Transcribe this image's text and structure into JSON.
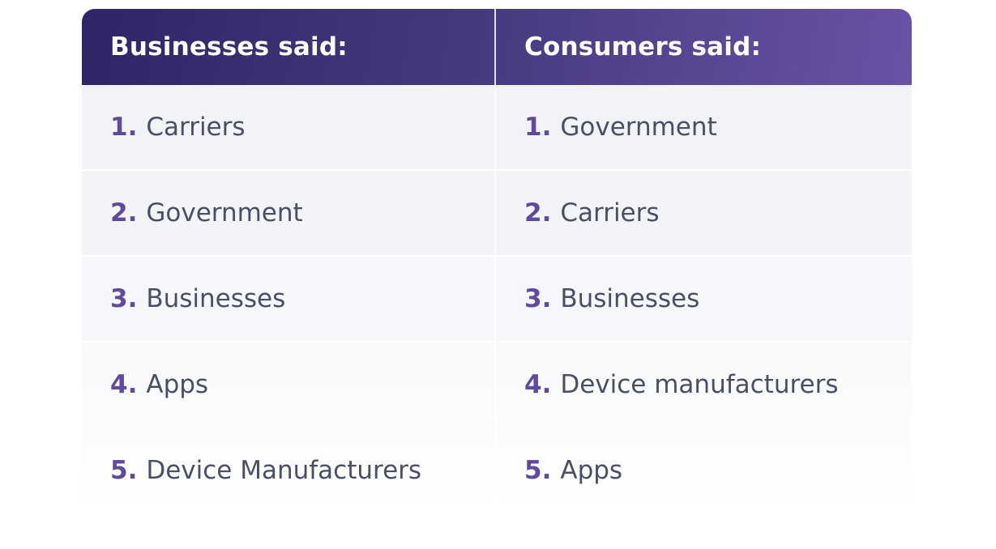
{
  "header": {
    "left_title": "Businesses said:",
    "right_title": "Consumers said:"
  },
  "colors": {
    "header_start": "#2f2566",
    "header_end": "#6a52a6",
    "number_accent": "#5f4aa0",
    "body_text": "#4a4f66"
  },
  "rows": [
    {
      "left_num": "1.",
      "left_text": "Carriers",
      "right_num": "1.",
      "right_text": "Government"
    },
    {
      "left_num": "2.",
      "left_text": "Government",
      "right_num": "2.",
      "right_text": "Carriers"
    },
    {
      "left_num": "3.",
      "left_text": "Businesses",
      "right_num": "3.",
      "right_text": "Businesses"
    },
    {
      "left_num": "4.",
      "left_text": "Apps",
      "right_num": "4.",
      "right_text": "Device manufacturers"
    },
    {
      "left_num": "5.",
      "left_text": "Device Manufacturers",
      "right_num": "5.",
      "right_text": "Apps"
    }
  ]
}
